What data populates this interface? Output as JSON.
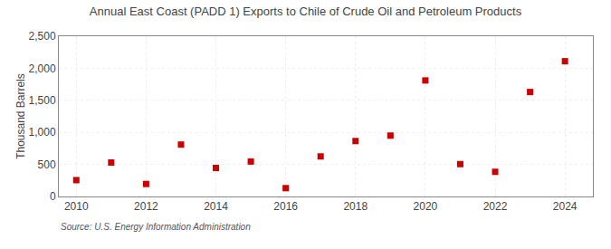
{
  "chart_data": {
    "type": "scatter",
    "title": "Annual East Coast (PADD 1) Exports to Chile of Crude Oil and Petroleum Products",
    "ylabel": "Thousand Barrels",
    "annotations": [
      "Source: U.S. Energy Information Administration"
    ],
    "x": [
      2010,
      2011,
      2012,
      2013,
      2014,
      2015,
      2016,
      2017,
      2018,
      2019,
      2020,
      2021,
      2022,
      2023,
      2024
    ],
    "values": [
      255,
      530,
      195,
      810,
      445,
      545,
      130,
      625,
      865,
      950,
      1810,
      505,
      385,
      1630,
      2110
    ],
    "color": "#cc0000",
    "marker": "square",
    "xlim": [
      2009.5,
      2024.8
    ],
    "xticks": [
      2010,
      2012,
      2014,
      2016,
      2018,
      2020,
      2022,
      2024
    ],
    "ylim": [
      0,
      2500
    ],
    "yticks": [
      0,
      500,
      {
        "value": 1000,
        "label": "1,000"
      },
      {
        "value": 1500,
        "label": "1,500"
      },
      {
        "value": 2000,
        "label": "2,000"
      },
      {
        "value": 2500,
        "label": "2,500"
      }
    ],
    "grid": true
  }
}
